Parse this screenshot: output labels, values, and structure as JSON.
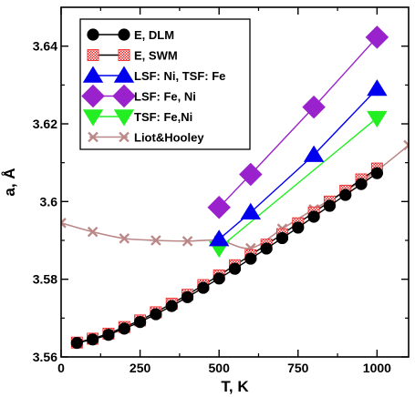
{
  "chart_data": {
    "type": "line",
    "xlabel": "T, K",
    "ylabel": "a, Å",
    "xlim": [
      0,
      1100
    ],
    "ylim": [
      3.56,
      3.65
    ],
    "xticks": [
      0,
      250,
      500,
      750,
      1000
    ],
    "xtick_labels": [
      "0",
      "250",
      "500",
      "750",
      "1000"
    ],
    "yticks": [
      3.56,
      3.58,
      3.6,
      3.62,
      3.64
    ],
    "ytick_labels": [
      "3.56",
      "3.58",
      "3.6",
      "3.62",
      "3.64"
    ],
    "grid": false,
    "legend_position": "top-left",
    "series": [
      {
        "name": "E, DLM",
        "color": "#000000",
        "marker": "circle",
        "x": [
          50,
          100,
          150,
          200,
          250,
          300,
          350,
          400,
          450,
          500,
          550,
          600,
          650,
          700,
          750,
          800,
          850,
          900,
          950,
          1000
        ],
        "y": [
          3.5636,
          3.5645,
          3.5657,
          3.5673,
          3.569,
          3.571,
          3.5731,
          3.5754,
          3.5778,
          3.5802,
          3.5827,
          3.5853,
          3.5879,
          3.5906,
          3.5933,
          3.5961,
          3.5989,
          3.6017,
          3.6045,
          3.6073
        ]
      },
      {
        "name": "E, SWM",
        "color": "#ee2222",
        "marker": "square-pattern",
        "x": [
          50,
          100,
          150,
          200,
          250,
          300,
          350,
          400,
          450,
          500,
          550,
          600,
          650,
          700,
          750,
          800,
          850,
          900,
          950,
          1000
        ],
        "y": [
          3.5637,
          3.5647,
          3.566,
          3.5677,
          3.5694,
          3.5715,
          3.5737,
          3.576,
          3.5785,
          3.581,
          3.5836,
          3.5862,
          3.5889,
          3.5916,
          3.5944,
          3.5972,
          3.6,
          3.6028,
          3.6057,
          3.6085
        ]
      },
      {
        "name": "LSF: Ni, TSF: Fe",
        "color": "#0000ee",
        "marker": "triangle-up",
        "x": [
          500,
          600,
          800,
          1000
        ],
        "y": [
          3.5903,
          3.5972,
          3.612,
          3.629
        ]
      },
      {
        "name": "LSF: Fe, Ni",
        "color": "#9922cc",
        "marker": "diamond",
        "x": [
          500,
          600,
          800,
          1000
        ],
        "y": [
          3.5985,
          3.607,
          3.6243,
          3.6423
        ]
      },
      {
        "name": "TSF: Fe,Ni",
        "color": "#22ee22",
        "marker": "triangle-down",
        "x": [
          500,
          1000
        ],
        "y": [
          3.588,
          3.6215
        ]
      },
      {
        "name": "Liot&Hooley",
        "color": "#bb8888",
        "marker": "x",
        "x": [
          0,
          100,
          200,
          300,
          400,
          500,
          600,
          700,
          800,
          900,
          1000,
          1100
        ],
        "y": [
          3.5945,
          3.5922,
          3.5905,
          3.59,
          3.5898,
          3.59,
          3.588,
          3.593,
          3.598,
          3.6027,
          3.608,
          3.6145
        ]
      }
    ]
  }
}
